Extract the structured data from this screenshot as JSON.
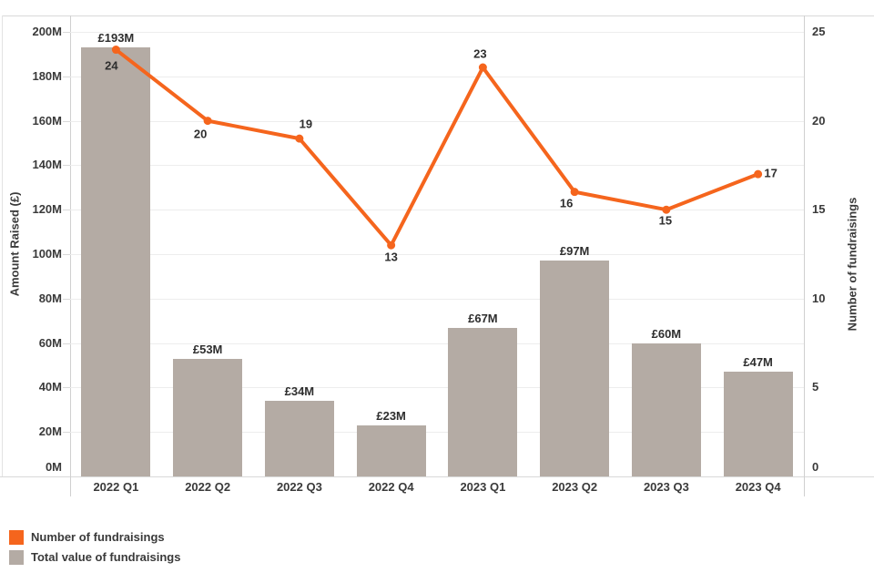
{
  "chart_data": {
    "type": "bar+line combo",
    "categories": [
      "2022 Q1",
      "2022 Q2",
      "2022 Q3",
      "2022 Q4",
      "2023 Q1",
      "2023 Q2",
      "2023 Q3",
      "2023 Q4"
    ],
    "series": [
      {
        "name": "Total value of fundraisings",
        "type": "bar",
        "axis": "left",
        "color": "#b4aba4",
        "values": [
          193,
          53,
          34,
          23,
          67,
          97,
          60,
          47
        ],
        "labels": [
          "£193M",
          "£53M",
          "£34M",
          "£23M",
          "£67M",
          "£97M",
          "£60M",
          "£47M"
        ]
      },
      {
        "name": "Number of fundraisings",
        "type": "line",
        "axis": "right",
        "color": "#f5651d",
        "values": [
          24,
          20,
          19,
          13,
          23,
          16,
          15,
          17
        ],
        "labels": [
          "24",
          "20",
          "19",
          "13",
          "23",
          "16",
          "15",
          "17"
        ]
      }
    ],
    "left_axis": {
      "title": "Amount Raised (£)",
      "min": 0,
      "max": 200,
      "step": 20,
      "tick_labels": [
        "0M",
        "20M",
        "40M",
        "60M",
        "80M",
        "100M",
        "120M",
        "140M",
        "160M",
        "180M",
        "200M"
      ]
    },
    "right_axis": {
      "title": "Number of fundraisings",
      "min": 0,
      "max": 25,
      "step": 5,
      "tick_labels": [
        "0",
        "5",
        "10",
        "15",
        "20",
        "25"
      ]
    },
    "grid": true,
    "legend_position": "bottom-left",
    "legend": [
      {
        "label": "Number of fundraisings",
        "color": "#f5651d"
      },
      {
        "label": "Total value of fundraisings",
        "color": "#b4aba4"
      }
    ]
  }
}
